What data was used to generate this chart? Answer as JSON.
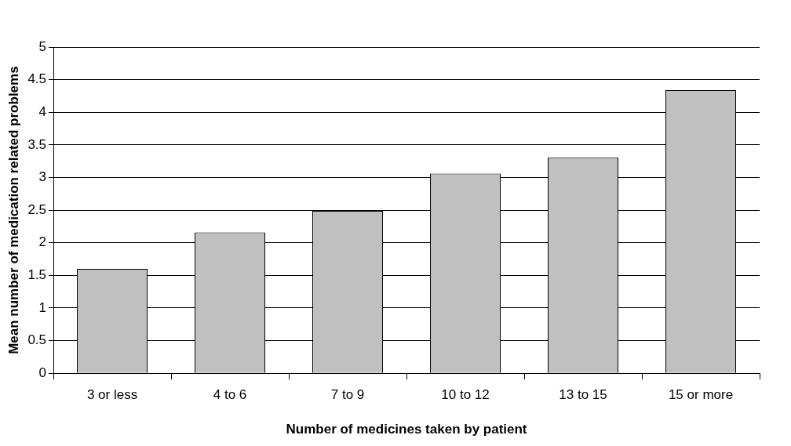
{
  "chart_data": {
    "type": "bar",
    "xlabel": "Number of medicines taken by patient",
    "ylabel": "Mean number of medication related problems",
    "categories": [
      "3 or less",
      "4 to 6",
      "7 to 9",
      "10 to 12",
      "13 to 15",
      "15 or more"
    ],
    "values": [
      1.6,
      2.16,
      2.49,
      3.06,
      3.31,
      4.34
    ],
    "color": "#c0c0c0",
    "ylim": [
      0,
      5
    ],
    "yticks": [
      0,
      0.5,
      1,
      1.5,
      2,
      2.5,
      3,
      3.5,
      4,
      4.5,
      5
    ],
    "grid": "y",
    "legend": false
  }
}
